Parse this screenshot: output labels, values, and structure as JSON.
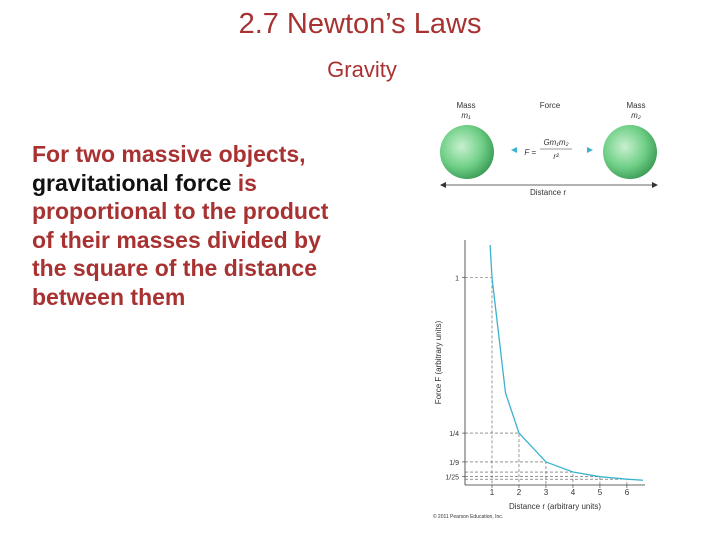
{
  "header": {
    "title": "2.7 Newton’s Laws",
    "subtitle": "Gravity",
    "color": "#a83232"
  },
  "body": {
    "segments": [
      {
        "text": "For two massive objects, ",
        "color": "#a83232"
      },
      {
        "text": "gravitational force",
        "color": "#111111"
      },
      {
        "text": " is proportional to the product of their masses divided by the square of the distance between them",
        "color": "#a83232"
      }
    ]
  },
  "figure": {
    "diagram": {
      "mass_left": "Mass",
      "m_left": "m₁",
      "force": "Force",
      "formula_lhs": "F =",
      "formula_num": "Gm₁m₂",
      "formula_den": "r²",
      "mass_right": "Mass",
      "m_right": "m₂",
      "distance": "Distance r"
    },
    "graph": {
      "type": "line",
      "xlabel": "Distance r (arbitrary units)",
      "ylabel": "Force F (arbitrary units)",
      "x": [
        0.93,
        1,
        1.5,
        2,
        3,
        4,
        5,
        6,
        6.6
      ],
      "y": [
        1.156,
        1,
        0.444,
        0.25,
        0.111,
        0.0625,
        0.04,
        0.028,
        0.023
      ],
      "color": "#3bb3d0",
      "xlim": [
        0,
        6.67
      ],
      "ylim": [
        0,
        1.18
      ],
      "xticks": [
        1,
        2,
        3,
        4,
        5,
        6
      ],
      "yticks": [
        1,
        {
          "value": 0.25,
          "label": "1/4"
        },
        {
          "value": 0.111,
          "label": "1/9"
        },
        {
          "value": 0.04,
          "label": "1/25"
        }
      ]
    },
    "credit": "© 2011 Pearson Education, Inc."
  }
}
